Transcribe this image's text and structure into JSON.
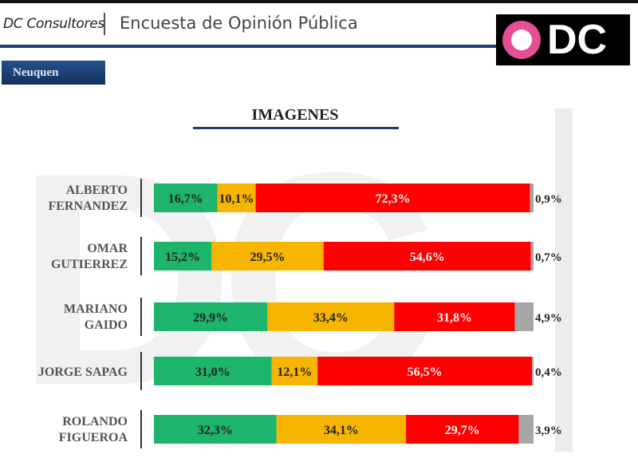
{
  "header": {
    "brand": "DC Consultores",
    "title": "Encuesta de Opinión Pública",
    "logo_text": "DC",
    "region": "Neuquen"
  },
  "colors": {
    "positive": "#1db46c",
    "neutral": "#f7b500",
    "negative": "#ff0000",
    "rest": "#a6a6a6",
    "accent": "#1d3f6e"
  },
  "chart_data": {
    "type": "bar",
    "orientation": "horizontal",
    "stacked": true,
    "title": "IMAGENES",
    "categories": [
      [
        "ALBERTO",
        "FERNANDEZ"
      ],
      [
        "OMAR",
        "GUTIERREZ"
      ],
      [
        "MARIANO",
        "GAIDO"
      ],
      [
        "JORGE SAPAG"
      ],
      [
        "ROLANDO",
        "FIGUEROA"
      ]
    ],
    "series": [
      {
        "values": [
          16.7,
          15.2,
          29.9,
          31.0,
          32.3
        ],
        "labels": [
          "16,7%",
          "15,2%",
          "29,9%",
          "31,0%",
          "32,3%"
        ]
      },
      {
        "values": [
          10.1,
          29.5,
          33.4,
          12.1,
          34.1
        ],
        "labels": [
          "10,1%",
          "29,5%",
          "33,4%",
          "12,1%",
          "34,1%"
        ]
      },
      {
        "values": [
          72.3,
          54.6,
          31.8,
          56.5,
          29.7
        ],
        "labels": [
          "72,3%",
          "54,6%",
          "31,8%",
          "56,5%",
          "29,7%"
        ]
      },
      {
        "values": [
          0.9,
          0.7,
          4.9,
          0.4,
          3.9
        ],
        "labels": [
          "0,9%",
          "0,7%",
          "4,9%",
          "0,4%",
          "3,9%"
        ]
      }
    ],
    "xlim": [
      0,
      100
    ],
    "grid": false,
    "legend": false
  }
}
